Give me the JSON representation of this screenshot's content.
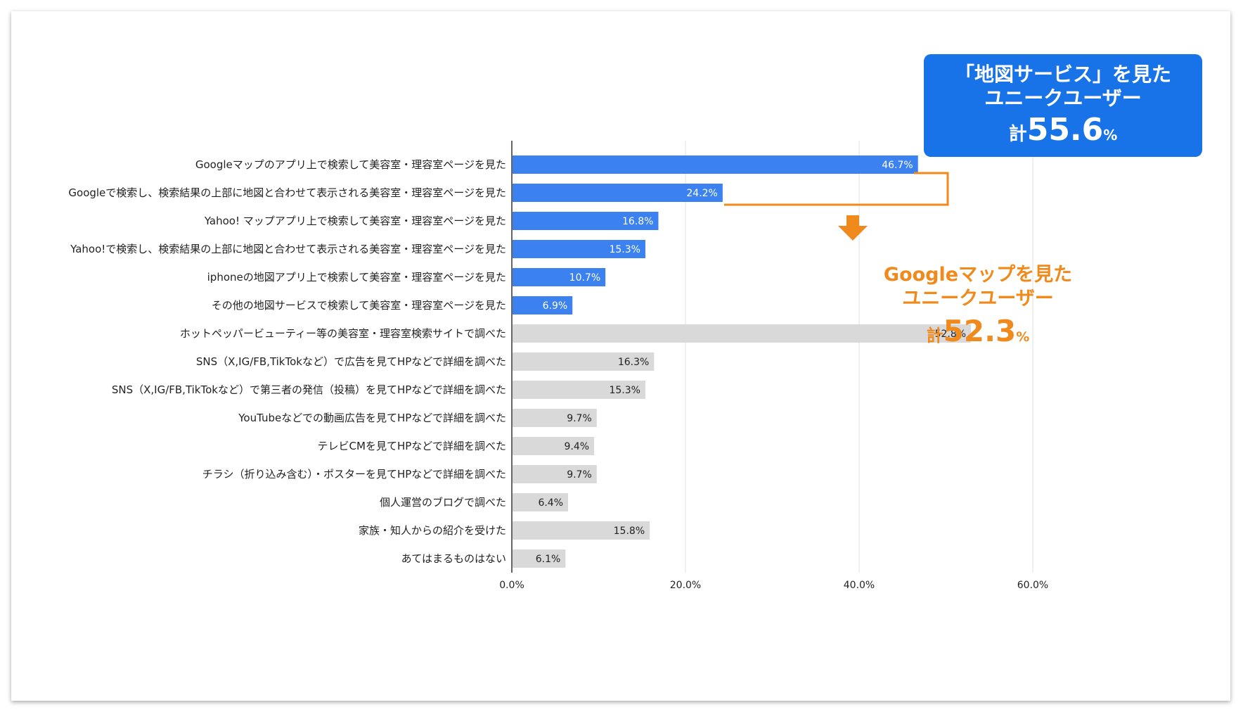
{
  "chart_data": {
    "type": "bar",
    "orientation": "horizontal",
    "categories": [
      "Googleマップのアプリ上で検索して美容室・理容室ページを見た",
      "Googleで検索し、検索結果の上部に地図と合わせて表示される美容室・理容室ページを見た",
      "Yahoo! マップアプリ上で検索して美容室・理容室ページを見た",
      "Yahoo!で検索し、検索結果の上部に地図と合わせて表示される美容室・理容室ページを見た",
      "iphoneの地図アプリ上で検索して美容室・理容室ページを見た",
      "その他の地図サービスで検索して美容室・理容室ページを見た",
      "ホットペッパービューティー等の美容室・理容室検索サイトで調べた",
      "SNS（X,IG/FB,TikTokなど）で広告を見てHPなどで詳細を調べた",
      "SNS（X,IG/FB,TikTokなど）で第三者の発信（投稿）を見てHPなどで詳細を調べた",
      "YouTubeなどでの動画広告を見てHPなどで詳細を調べた",
      "テレビCMを見てHPなどで詳細を調べた",
      "チラシ（折り込み含む）・ポスターを見てHPなどで詳細を調べた",
      "個人運営のブログで調べた",
      "家族・知人からの紹介を受けた",
      "あてはまるものはない"
    ],
    "values": [
      46.7,
      24.2,
      16.8,
      15.3,
      10.7,
      6.9,
      52.8,
      16.3,
      15.3,
      9.7,
      9.4,
      9.7,
      6.4,
      15.8,
      6.1
    ],
    "value_labels": [
      "46.7%",
      "24.2%",
      "16.8%",
      "15.3%",
      "10.7%",
      "6.9%",
      "52.8%",
      "16.3%",
      "15.3%",
      "9.7%",
      "9.4%",
      "9.7%",
      "6.4%",
      "15.8%",
      "6.1%"
    ],
    "highlighted_count": 6,
    "xlim": [
      0,
      60
    ],
    "x_ticks": [
      0,
      20,
      40,
      60
    ],
    "x_tick_labels": [
      "0.0%",
      "20.0%",
      "40.0%",
      "60.0%"
    ],
    "grid": true,
    "title": "",
    "xlabel": "",
    "ylabel": ""
  },
  "callouts": {
    "map_service": {
      "line1": "「地図サービス」を見た",
      "line2": "ユニークユーザー",
      "prefix": "計",
      "value": "55.6",
      "unit": "%"
    },
    "google_maps": {
      "line1": "Googleマップを見た",
      "line2": "ユニークユーザー",
      "prefix": "計",
      "value": "52.3",
      "unit": "%"
    }
  },
  "colors": {
    "highlight_bar": "#3b82f0",
    "other_bar": "#d9d9d9",
    "callout_box": "#1873e8",
    "accent_orange": "#f08a1c",
    "gridline": "#e0e0e0",
    "axis": "#333333",
    "text": "#222222"
  },
  "icons": {
    "bracket": "orange-bracket-connector",
    "arrow": "orange-down-arrow-icon"
  }
}
